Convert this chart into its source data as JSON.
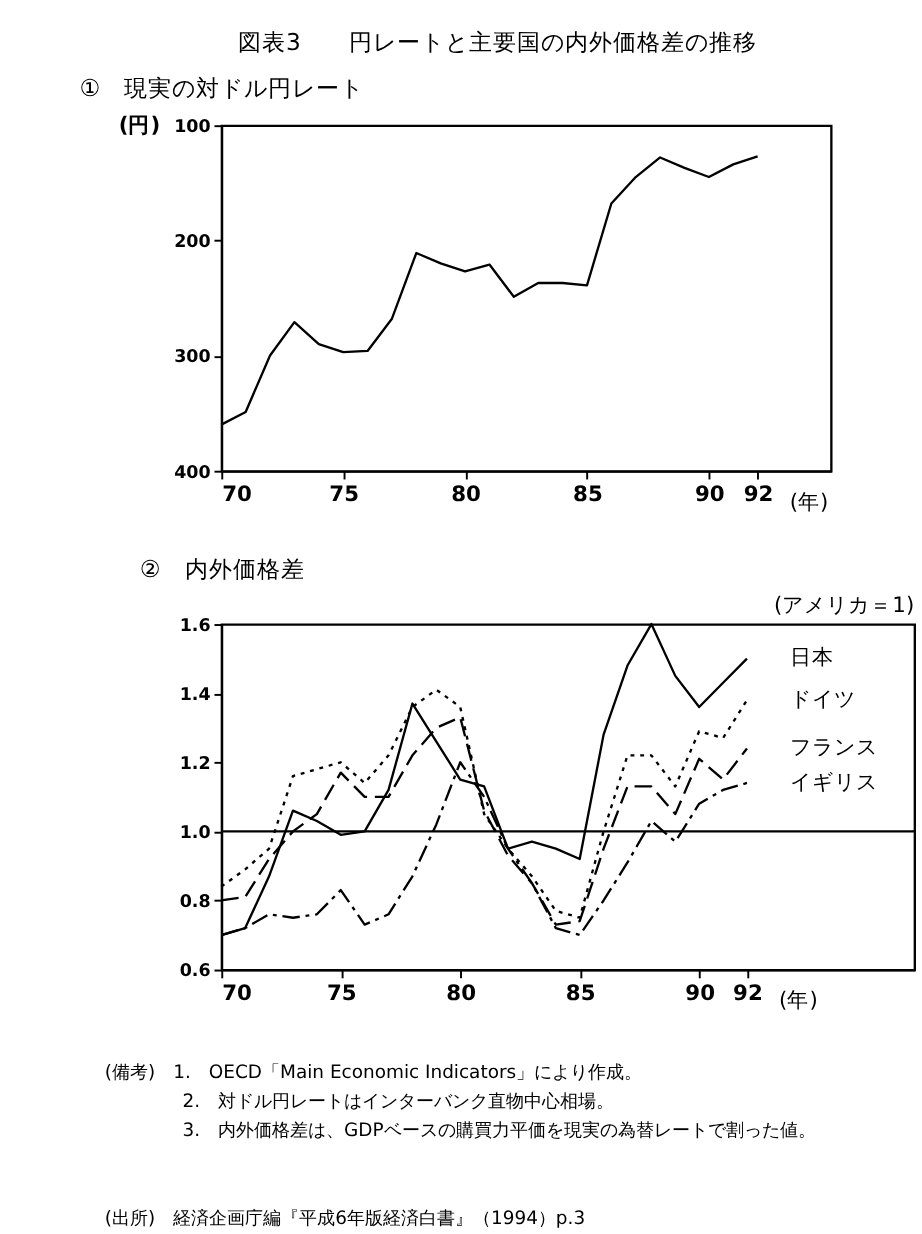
{
  "chart_data": [
    {
      "type": "line",
      "title": "図表3　　円レートと主要国の内外価格差の推移",
      "subtitle": "①　現実の対ドル円レート",
      "ylabel": "(円)",
      "xlabel": "(年)",
      "x": [
        70,
        71,
        72,
        73,
        74,
        75,
        76,
        77,
        78,
        79,
        80,
        81,
        82,
        83,
        84,
        85,
        86,
        87,
        88,
        89,
        90,
        91,
        92
      ],
      "series": [
        {
          "color": "#000000",
          "line_style": "solid",
          "values": [
            360,
            349,
            300,
            271,
            290,
            297,
            296,
            268,
            211,
            220,
            227,
            221,
            249,
            237,
            237,
            239,
            168,
            145,
            128,
            137,
            145,
            134,
            127
          ]
        }
      ],
      "xlim": [
        70,
        95
      ],
      "xticks": [
        70,
        75,
        80,
        85,
        90,
        92
      ],
      "ylim": [
        400,
        100
      ],
      "yticks": [
        100,
        200,
        300,
        400
      ],
      "grid": false
    },
    {
      "type": "line",
      "title": "②　内外価格差",
      "xlabel": "(年)",
      "x": [
        70,
        71,
        72,
        73,
        74,
        75,
        76,
        77,
        78,
        79,
        80,
        81,
        82,
        83,
        84,
        85,
        86,
        87,
        88,
        89,
        90,
        91,
        92
      ],
      "series": [
        {
          "name": "日本",
          "color": "#000000",
          "line_style": "solid",
          "values": [
            0.7,
            0.72,
            0.87,
            1.06,
            1.03,
            0.99,
            1.0,
            1.12,
            1.37,
            1.26,
            1.15,
            1.13,
            0.95,
            0.97,
            0.95,
            0.92,
            1.28,
            1.48,
            1.6,
            1.45,
            1.36,
            1.43,
            1.5
          ]
        },
        {
          "name": "ドイツ",
          "color": "#000000",
          "line_style": "dotted",
          "values": [
            0.84,
            0.89,
            0.95,
            1.16,
            1.18,
            1.2,
            1.14,
            1.22,
            1.36,
            1.41,
            1.36,
            1.05,
            0.95,
            0.87,
            0.77,
            0.75,
            1.0,
            1.22,
            1.22,
            1.13,
            1.29,
            1.27,
            1.38
          ]
        },
        {
          "name": "フランス",
          "color": "#000000",
          "line_style": "dashed",
          "values": [
            0.8,
            0.81,
            0.92,
            1.0,
            1.05,
            1.17,
            1.1,
            1.1,
            1.22,
            1.3,
            1.33,
            1.06,
            0.93,
            0.85,
            0.73,
            0.74,
            0.95,
            1.13,
            1.13,
            1.05,
            1.21,
            1.15,
            1.24
          ]
        },
        {
          "name": "イギリス",
          "color": "#000000",
          "line_style": "dashdot",
          "values": [
            0.7,
            0.72,
            0.76,
            0.75,
            0.76,
            0.83,
            0.73,
            0.76,
            0.87,
            1.02,
            1.2,
            1.1,
            0.95,
            0.85,
            0.72,
            0.7,
            0.8,
            0.91,
            1.03,
            0.97,
            1.08,
            1.12,
            1.14
          ]
        }
      ],
      "xlim": [
        70,
        99
      ],
      "xticks": [
        70,
        75,
        80,
        85,
        90,
        92
      ],
      "ylim": [
        0.6,
        1.6
      ],
      "yticks": [
        0.6,
        0.8,
        {
          "value": 1.0,
          "label": "1.0"
        },
        1.2,
        1.4,
        1.6
      ],
      "grid": false,
      "ref_lines": [
        {
          "axis": "y",
          "value": 1.0,
          "color": "#000000",
          "line_style": "solid"
        }
      ],
      "annotations": [
        "(アメリカ＝1)",
        "(備考)　1.　OECD「Main Economic Indicators」により作成。",
        "2.　対ドル円レートはインターバンク直物中心相場。",
        "3.　内外価格差は、GDPベースの購買力平価を現実の為替レートで割った値。",
        "(出所)　経済企画庁編『平成6年版経済白書』（1994）p.3"
      ]
    }
  ]
}
